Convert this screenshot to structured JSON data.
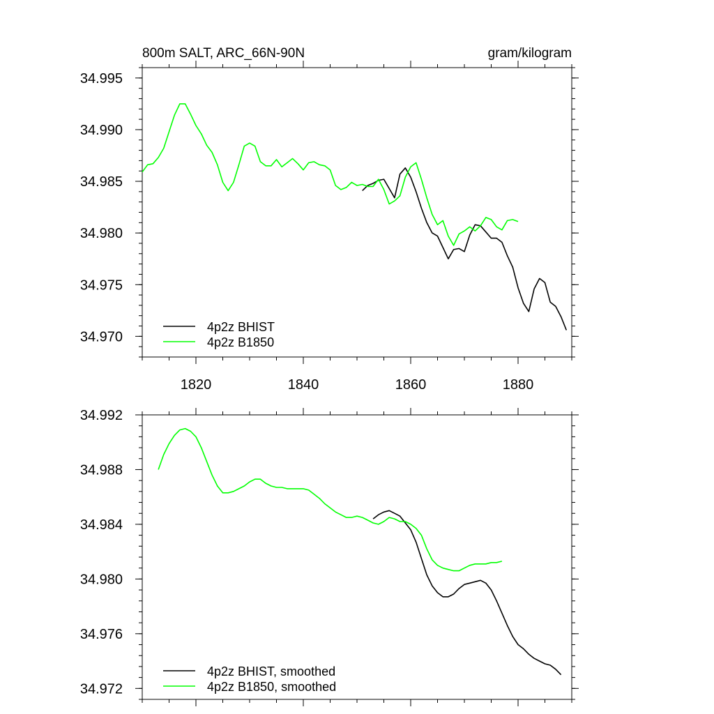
{
  "chart_data": [
    {
      "type": "line",
      "title": "800m SALT, ARC_66N-90N",
      "units": "gram/kilogram",
      "xlabel": "",
      "ylabel": "",
      "xlim": [
        1810,
        1890
      ],
      "ylim": [
        34.968,
        34.996
      ],
      "xticks": [
        1820,
        1840,
        1860,
        1880
      ],
      "xtick_labels": [
        "1820",
        "1840",
        "1860",
        "1880"
      ],
      "yticks": [
        34.97,
        34.975,
        34.98,
        34.985,
        34.99,
        34.995
      ],
      "ytick_labels": [
        "34.970",
        "34.975",
        "34.980",
        "34.985",
        "34.990",
        "34.995"
      ],
      "legend_position": "bottom-left",
      "grid": false,
      "series": [
        {
          "name": "4p2z BHIST",
          "color": "#000000",
          "x": [
            1851,
            1852,
            1853,
            1854,
            1855,
            1856,
            1857,
            1858,
            1859,
            1860,
            1861,
            1862,
            1863,
            1864,
            1865,
            1866,
            1867,
            1868,
            1869,
            1870,
            1871,
            1872,
            1873,
            1874,
            1875,
            1876,
            1877,
            1878,
            1879,
            1880,
            1881,
            1882,
            1883,
            1884,
            1885,
            1886,
            1887,
            1888,
            1889
          ],
          "y": [
            34.9841,
            34.9846,
            34.9848,
            34.9851,
            34.9852,
            34.9843,
            34.9834,
            34.9857,
            34.9863,
            34.9854,
            34.984,
            34.9824,
            34.981,
            34.98,
            34.9797,
            34.9786,
            34.9775,
            34.9784,
            34.9785,
            34.9782,
            34.9798,
            34.9808,
            34.9807,
            34.9801,
            34.9795,
            34.9795,
            34.9791,
            34.9778,
            34.9767,
            34.9747,
            34.9732,
            34.9724,
            34.9746,
            34.9756,
            34.9752,
            34.9733,
            34.9729,
            34.9719,
            34.9706
          ]
        },
        {
          "name": "4p2z B1850",
          "color": "#00ff00",
          "x": [
            1810,
            1811,
            1812,
            1813,
            1814,
            1815,
            1816,
            1817,
            1818,
            1819,
            1820,
            1821,
            1822,
            1823,
            1824,
            1825,
            1826,
            1827,
            1828,
            1829,
            1830,
            1831,
            1832,
            1833,
            1834,
            1835,
            1836,
            1837,
            1838,
            1839,
            1840,
            1841,
            1842,
            1843,
            1844,
            1845,
            1846,
            1847,
            1848,
            1849,
            1850,
            1851,
            1852,
            1853,
            1854,
            1855,
            1856,
            1857,
            1858,
            1859,
            1860,
            1861,
            1862,
            1863,
            1864,
            1865,
            1866,
            1867,
            1868,
            1869,
            1870,
            1871,
            1872,
            1873,
            1874,
            1875,
            1876,
            1877,
            1878,
            1879,
            1880
          ],
          "y": [
            34.9859,
            34.9866,
            34.9867,
            34.9873,
            34.9882,
            34.9898,
            34.9914,
            34.9925,
            34.9925,
            34.9915,
            34.9904,
            34.9896,
            34.9885,
            34.9878,
            34.9866,
            34.9849,
            34.9841,
            34.9849,
            34.9866,
            34.9884,
            34.9887,
            34.9884,
            34.9869,
            34.9865,
            34.9865,
            34.9871,
            34.9864,
            34.9868,
            34.9872,
            34.9867,
            34.9861,
            34.9868,
            34.9869,
            34.9866,
            34.9865,
            34.9861,
            34.9846,
            34.9842,
            34.9844,
            34.9849,
            34.9846,
            34.9847,
            34.9845,
            34.9845,
            34.9852,
            34.9842,
            34.9828,
            34.9831,
            34.9836,
            34.9854,
            34.9864,
            34.9868,
            34.9852,
            34.9834,
            34.9818,
            34.9808,
            34.9812,
            34.9797,
            34.9788,
            34.9799,
            34.9802,
            34.9806,
            34.9802,
            34.9807,
            34.9815,
            34.9813,
            34.9806,
            34.9803,
            34.9812,
            34.9813,
            34.9811
          ]
        }
      ]
    },
    {
      "type": "line",
      "title": "",
      "xlabel": "",
      "ylabel": "",
      "xlim": [
        1810,
        1890
      ],
      "ylim": [
        34.9712,
        34.992
      ],
      "xticks": [
        1820,
        1840,
        1860,
        1880
      ],
      "xtick_labels": [],
      "yticks": [
        34.972,
        34.976,
        34.98,
        34.984,
        34.988,
        34.992
      ],
      "ytick_labels": [
        "34.972",
        "34.976",
        "34.980",
        "34.984",
        "34.988",
        "34.992"
      ],
      "legend_position": "bottom-left",
      "grid": false,
      "series": [
        {
          "name": "4p2z BHIST, smoothed",
          "color": "#000000",
          "x": [
            1853,
            1854,
            1855,
            1856,
            1857,
            1858,
            1859,
            1860,
            1861,
            1862,
            1863,
            1864,
            1865,
            1866,
            1867,
            1868,
            1869,
            1870,
            1871,
            1872,
            1873,
            1874,
            1875,
            1876,
            1877,
            1878,
            1879,
            1880,
            1881,
            1882,
            1883,
            1884,
            1885,
            1886,
            1887,
            1888
          ],
          "y": [
            34.9844,
            34.9847,
            34.9849,
            34.985,
            34.9848,
            34.9846,
            34.9841,
            34.9836,
            34.9827,
            34.9815,
            34.9803,
            34.9795,
            34.979,
            34.9787,
            34.9787,
            34.9789,
            34.9793,
            34.9796,
            34.9797,
            34.9798,
            34.9799,
            34.9797,
            34.9792,
            34.9784,
            34.9775,
            34.9766,
            34.9758,
            34.9752,
            34.9749,
            34.9745,
            34.9742,
            34.974,
            34.9738,
            34.9737,
            34.9734,
            34.973
          ]
        },
        {
          "name": "4p2z B1850, smoothed",
          "color": "#00ff00",
          "x": [
            1813,
            1814,
            1815,
            1816,
            1817,
            1818,
            1819,
            1820,
            1821,
            1822,
            1823,
            1824,
            1825,
            1826,
            1827,
            1828,
            1829,
            1830,
            1831,
            1832,
            1833,
            1834,
            1835,
            1836,
            1837,
            1838,
            1839,
            1840,
            1841,
            1842,
            1843,
            1844,
            1845,
            1846,
            1847,
            1848,
            1849,
            1850,
            1851,
            1852,
            1853,
            1854,
            1855,
            1856,
            1857,
            1858,
            1859,
            1860,
            1861,
            1862,
            1863,
            1864,
            1865,
            1866,
            1867,
            1868,
            1869,
            1870,
            1871,
            1872,
            1873,
            1874,
            1875,
            1876,
            1877
          ],
          "y": [
            34.988,
            34.9891,
            34.9899,
            34.9905,
            34.9909,
            34.991,
            34.9908,
            34.9904,
            34.9896,
            34.9886,
            34.9876,
            34.9868,
            34.9863,
            34.9863,
            34.9864,
            34.9866,
            34.9868,
            34.9871,
            34.9873,
            34.9873,
            34.987,
            34.9868,
            34.9867,
            34.9867,
            34.9866,
            34.9866,
            34.9866,
            34.9866,
            34.9865,
            34.9862,
            34.9859,
            34.9855,
            34.9852,
            34.9849,
            34.9847,
            34.9845,
            34.9845,
            34.9846,
            34.9845,
            34.9843,
            34.9841,
            34.984,
            34.9842,
            34.9845,
            34.9844,
            34.9842,
            34.9842,
            34.984,
            34.9837,
            34.9832,
            34.9822,
            34.9814,
            34.981,
            34.9808,
            34.9807,
            34.9806,
            34.9806,
            34.9808,
            34.981,
            34.9811,
            34.9811,
            34.9811,
            34.9812,
            34.9812,
            34.9813
          ]
        }
      ]
    }
  ]
}
